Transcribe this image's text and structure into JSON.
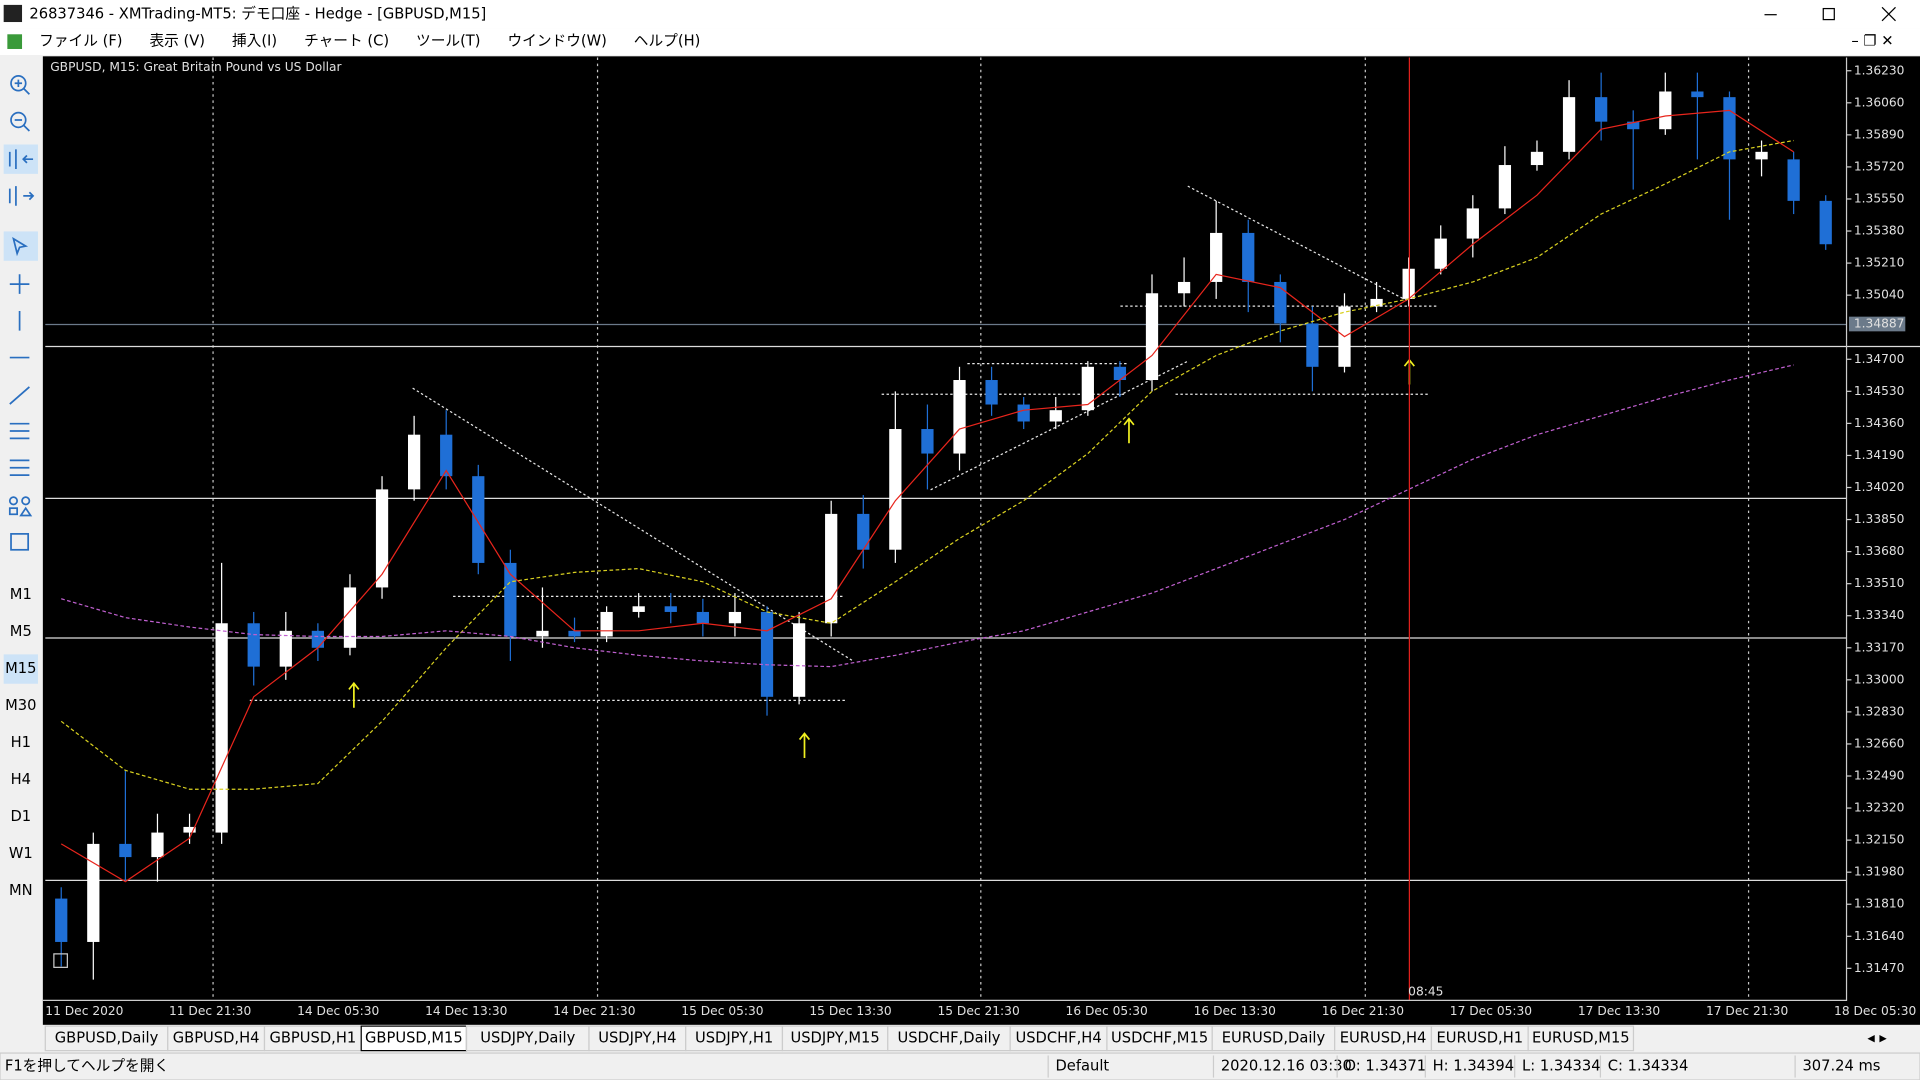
{
  "window": {
    "title": "26837346 - XMTrading-MT5: デモ口座 - Hedge - [GBPUSD,M15]"
  },
  "menu": [
    "ファイル (F)",
    "表示 (V)",
    "挿入(I)",
    "チャート (C)",
    "ツール(T)",
    "ウインドウ(W)",
    "ヘルプ(H)"
  ],
  "timeframes": [
    "M1",
    "M5",
    "M15",
    "M30",
    "H1",
    "H4",
    "D1",
    "W1",
    "MN"
  ],
  "active_timeframe": "M15",
  "chart_data": {
    "type": "candlestick",
    "title": "GBPUSD, M15:  Great Britain Pound vs US Dollar",
    "ylim": [
      1.313,
      1.363
    ],
    "yticks": [
      {
        "value": 1.3623,
        "label": "1.36230"
      },
      {
        "value": 1.3606,
        "label": "1.36060"
      },
      {
        "value": 1.3589,
        "label": "1.35890"
      },
      {
        "value": 1.3572,
        "label": "1.35720"
      },
      {
        "value": 1.3555,
        "label": "1.35550"
      },
      {
        "value": 1.3538,
        "label": "1.35380"
      },
      {
        "value": 1.3521,
        "label": "1.35210"
      },
      {
        "value": 1.3504,
        "label": "1.35040"
      },
      {
        "value": 1.347,
        "label": "1.34700"
      },
      {
        "value": 1.3453,
        "label": "1.34530"
      },
      {
        "value": 1.3436,
        "label": "1.34360"
      },
      {
        "value": 1.3419,
        "label": "1.34190"
      },
      {
        "value": 1.3402,
        "label": "1.34020"
      },
      {
        "value": 1.3385,
        "label": "1.33850"
      },
      {
        "value": 1.3368,
        "label": "1.33680"
      },
      {
        "value": 1.3351,
        "label": "1.33510"
      },
      {
        "value": 1.3334,
        "label": "1.33340"
      },
      {
        "value": 1.3317,
        "label": "1.33170"
      },
      {
        "value": 1.33,
        "label": "1.33000"
      },
      {
        "value": 1.3283,
        "label": "1.32830"
      },
      {
        "value": 1.3266,
        "label": "1.32660"
      },
      {
        "value": 1.3249,
        "label": "1.32490"
      },
      {
        "value": 1.3232,
        "label": "1.32320"
      },
      {
        "value": 1.3215,
        "label": "1.32150"
      },
      {
        "value": 1.3198,
        "label": "1.31980"
      },
      {
        "value": 1.3181,
        "label": "1.31810"
      },
      {
        "value": 1.3164,
        "label": "1.31640"
      },
      {
        "value": 1.3147,
        "label": "1.31470"
      }
    ],
    "current_price": 1.34887,
    "cursor_time": "08:45",
    "xticks": [
      "11 Dec 2020",
      "11 Dec 21:30",
      "14 Dec 05:30",
      "14 Dec 13:30",
      "14 Dec 21:30",
      "15 Dec 05:30",
      "15 Dec 13:30",
      "15 Dec 21:30",
      "16 Dec 05:30",
      "16 Dec 13:30",
      "16 Dec 21:30",
      "17 Dec 05:30",
      "17 Dec 13:30",
      "17 Dec 21:30",
      "18 Dec 05:30"
    ],
    "bull_color": "#ffffff",
    "bear_color": "#1f6fd6",
    "open": [
      1.3184,
      1.3161,
      1.3213,
      1.3206,
      1.3219,
      1.3219,
      1.333,
      1.3307,
      1.3326,
      1.3317,
      1.3349,
      1.3401,
      1.343,
      1.3408,
      1.3362,
      1.3323,
      1.3326,
      1.3323,
      1.3336,
      1.3339,
      1.3336,
      1.333,
      1.3336,
      1.3291,
      1.333,
      1.3388,
      1.3369,
      1.3433,
      1.342,
      1.3459,
      1.3446,
      1.3437,
      1.3443,
      1.3466,
      1.3459,
      1.3505,
      1.3511,
      1.3537,
      1.3511,
      1.3489,
      1.3466,
      1.3498,
      1.3502,
      1.3518,
      1.3534,
      1.355,
      1.3573,
      1.358,
      1.3609,
      1.3596,
      1.3592,
      1.3612,
      1.3609,
      1.3576,
      1.3576,
      1.3554
    ],
    "high": [
      1.319,
      1.3219,
      1.3252,
      1.3229,
      1.3229,
      1.3362,
      1.3336,
      1.3336,
      1.333,
      1.3356,
      1.3408,
      1.344,
      1.3443,
      1.3414,
      1.3369,
      1.3349,
      1.3333,
      1.3339,
      1.3346,
      1.3346,
      1.3343,
      1.3346,
      1.3339,
      1.3336,
      1.3395,
      1.3398,
      1.3453,
      1.3446,
      1.3466,
      1.3466,
      1.345,
      1.345,
      1.3469,
      1.3469,
      1.3515,
      1.3524,
      1.3554,
      1.3544,
      1.3515,
      1.3498,
      1.3505,
      1.3511,
      1.3524,
      1.3541,
      1.3557,
      1.3583,
      1.3586,
      1.3618,
      1.3622,
      1.3602,
      1.3622,
      1.3622,
      1.3612,
      1.3586,
      1.358,
      1.3557
    ],
    "low": [
      1.3148,
      1.3141,
      1.3193,
      1.3193,
      1.3213,
      1.3213,
      1.3297,
      1.33,
      1.331,
      1.3313,
      1.3343,
      1.3395,
      1.3401,
      1.3356,
      1.331,
      1.3317,
      1.332,
      1.332,
      1.3333,
      1.333,
      1.3323,
      1.3323,
      1.3281,
      1.3287,
      1.3323,
      1.3359,
      1.3362,
      1.3401,
      1.3411,
      1.344,
      1.3433,
      1.3433,
      1.344,
      1.345,
      1.3453,
      1.3498,
      1.3502,
      1.3495,
      1.3479,
      1.3453,
      1.3463,
      1.3495,
      1.3498,
      1.3515,
      1.3524,
      1.3547,
      1.357,
      1.3576,
      1.3586,
      1.356,
      1.3589,
      1.3576,
      1.3544,
      1.3567,
      1.3547,
      1.3528
    ],
    "close": [
      1.3161,
      1.3213,
      1.3206,
      1.3219,
      1.3222,
      1.333,
      1.3307,
      1.3326,
      1.3317,
      1.3349,
      1.3401,
      1.343,
      1.3408,
      1.3362,
      1.3323,
      1.3326,
      1.3323,
      1.3336,
      1.3339,
      1.3336,
      1.333,
      1.3336,
      1.3291,
      1.333,
      1.3388,
      1.3369,
      1.3433,
      1.342,
      1.3459,
      1.3446,
      1.3437,
      1.3443,
      1.3466,
      1.3459,
      1.3505,
      1.3511,
      1.3537,
      1.3511,
      1.3489,
      1.3466,
      1.3498,
      1.3502,
      1.3518,
      1.3534,
      1.355,
      1.3573,
      1.358,
      1.3609,
      1.3596,
      1.3592,
      1.3612,
      1.3609,
      1.3576,
      1.358,
      1.3554,
      1.3531
    ],
    "series": [
      {
        "color": "#e8251c",
        "dash": false,
        "values": [
          1.3213,
          1.3193,
          1.3216,
          1.3291,
          1.3317,
          1.3356,
          1.3411,
          1.3356,
          1.3326,
          1.3326,
          1.333,
          1.3326,
          1.3343,
          1.3395,
          1.3433,
          1.3443,
          1.3446,
          1.3472,
          1.3515,
          1.3508,
          1.3482,
          1.3502,
          1.3531,
          1.3557,
          1.3592,
          1.3599,
          1.3602,
          1.358
        ]
      },
      {
        "color": "#d8d020",
        "dash": true,
        "values": [
          1.3278,
          1.3252,
          1.3242,
          1.3242,
          1.3245,
          1.3278,
          1.3317,
          1.3352,
          1.3357,
          1.3359,
          1.3352,
          1.3336,
          1.333,
          1.3352,
          1.3375,
          1.3395,
          1.342,
          1.3453,
          1.3472,
          1.3485,
          1.3495,
          1.3502,
          1.3511,
          1.3524,
          1.3547,
          1.3563,
          1.358,
          1.3586
        ]
      },
      {
        "color": "#c060d0",
        "dash": true,
        "values": [
          1.3343,
          1.3333,
          1.3328,
          1.3324,
          1.3323,
          1.3323,
          1.3326,
          1.3323,
          1.3317,
          1.3313,
          1.331,
          1.3308,
          1.3307,
          1.3313,
          1.332,
          1.3326,
          1.3336,
          1.3346,
          1.3359,
          1.3372,
          1.3385,
          1.3401,
          1.3417,
          1.343,
          1.344,
          1.345,
          1.3459,
          1.3467
        ]
      }
    ]
  },
  "tabs": [
    "GBPUSD,Daily",
    "GBPUSD,H4",
    "GBPUSD,H1",
    "GBPUSD,M15",
    "USDJPY,Daily",
    "USDJPY,H4",
    "USDJPY,H1",
    "USDJPY,M15",
    "USDCHF,Daily",
    "USDCHF,H4",
    "USDCHF,M15",
    "EURUSD,Daily",
    "EURUSD,H4",
    "EURUSD,H1",
    "EURUSD,M15"
  ],
  "active_tab": "GBPUSD,M15",
  "status": [
    "F1を押してヘルプを開く",
    "Default",
    "2020.12.16 03:30",
    "O: 1.34371",
    "H: 1.34394",
    "L: 1.34334",
    "C: 1.34334",
    "307.24 ms"
  ]
}
